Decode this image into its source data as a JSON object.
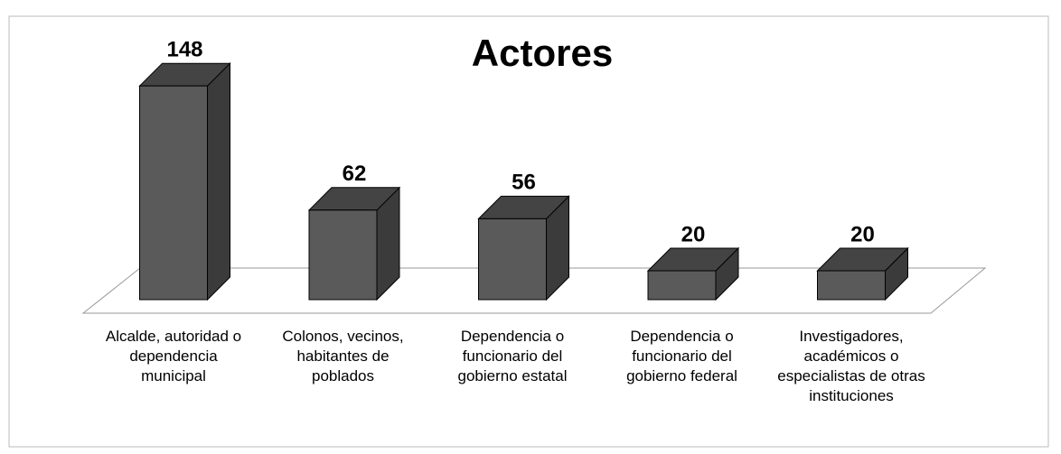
{
  "chart_data": {
    "type": "bar3d",
    "title": "Actores",
    "categories": [
      "Alcalde, autoridad o dependencia municipal",
      "Colonos, vecinos, habitantes de poblados",
      "Dependencia o funcionario del gobierno estatal",
      "Dependencia o funcionario del gobierno federal",
      "Investigadores, académicos o especialistas de otras instituciones"
    ],
    "values": [
      148,
      62,
      56,
      20,
      20
    ],
    "color": "#5a5a5a"
  }
}
